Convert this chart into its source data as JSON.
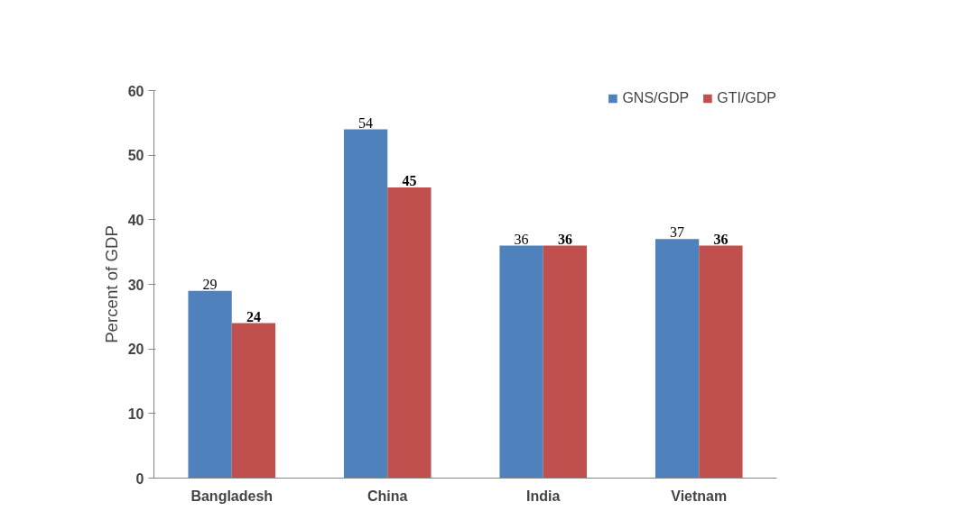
{
  "chart_data": {
    "type": "bar",
    "ylabel": "Percent of GDP",
    "categories": [
      "Bangladesh",
      "China",
      "India",
      "Vietnam"
    ],
    "series": [
      {
        "name": "GNS/GDP",
        "color": "#4f81bd",
        "values": [
          29,
          54,
          36,
          37
        ]
      },
      {
        "name": "GTI/GDP",
        "color": "#c0504d",
        "values": [
          24,
          45,
          36,
          36
        ]
      }
    ],
    "ylim": [
      0,
      60
    ],
    "yticks": [
      0,
      10,
      20,
      30,
      40,
      50,
      60
    ],
    "grid": false,
    "legend": "top right",
    "data_labels": true
  }
}
